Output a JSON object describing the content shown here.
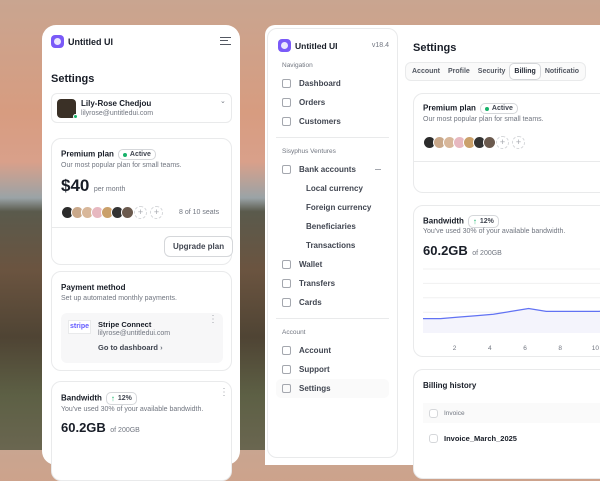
{
  "mobile": {
    "brand": "Untitled UI",
    "title": "Settings",
    "user": {
      "name": "Lily-Rose Chedjou",
      "email": "lilyrose@untitledui.com"
    },
    "plan": {
      "title": "Premium plan",
      "badge": "Active",
      "desc": "Our most popular plan for small teams.",
      "price": "$40",
      "period": "per month",
      "seats": "8 of 10 seats",
      "upgrade": "Upgrade plan"
    },
    "payment": {
      "title": "Payment method",
      "desc": "Set up automated monthly payments.",
      "logo": "stripe",
      "provider": "Stripe Connect",
      "email": "lilyrose@untitledui.com",
      "link": "Go to dashboard"
    },
    "bandwidth": {
      "title": "Bandwidth",
      "change": "12%",
      "desc": "You've used 30% of your available bandwidth.",
      "used": "60.2GB",
      "total": "of 200GB"
    }
  },
  "sidebar": {
    "brand": "Untitled UI",
    "version": "v18.4",
    "sections": [
      {
        "label": "Navigation",
        "items": [
          "Dashboard",
          "Orders",
          "Customers"
        ]
      },
      {
        "label": "Sisyphus Ventures",
        "items": [
          "Bank accounts",
          "Wallet",
          "Transfers",
          "Cards"
        ],
        "subitems": [
          "Local currency",
          "Foreign currency",
          "Beneficiaries",
          "Transactions"
        ]
      },
      {
        "label": "Account",
        "items": [
          "Account",
          "Support",
          "Settings"
        ]
      }
    ],
    "active": "Settings"
  },
  "main": {
    "title": "Settings",
    "tabs": [
      "Account",
      "Profile",
      "Security",
      "Billing",
      "Notificatio"
    ],
    "active_tab": "Billing",
    "plan": {
      "title": "Premium plan",
      "badge": "Active",
      "desc": "Our most popular plan for small teams."
    },
    "bandwidth": {
      "title": "Bandwidth",
      "change": "12%",
      "desc": "You've used 30% of your available bandwidth.",
      "used": "60.2GB",
      "total": "of 200GB"
    },
    "billing": {
      "title": "Billing history",
      "column": "Invoice",
      "rows": [
        "Invoice_March_2025"
      ]
    }
  },
  "colors": {
    "accent": "#7a5af8",
    "chart_line": "#6172f3",
    "success": "#17b26a"
  },
  "avatar_colors": [
    "#2b2b2b",
    "#c9a88a",
    "#d8b79a",
    "#e7b8c0",
    "#caa06a",
    "#333333",
    "#6b5a4e"
  ],
  "chart_data": {
    "type": "area",
    "x": [
      1,
      2,
      3,
      4,
      5,
      6,
      7,
      8,
      9,
      10,
      11,
      12
    ],
    "values": [
      10,
      10,
      11,
      12,
      13,
      15,
      17,
      15,
      15,
      15,
      15,
      16
    ],
    "xticks": [
      2,
      4,
      6,
      8,
      10
    ],
    "grid": true
  }
}
